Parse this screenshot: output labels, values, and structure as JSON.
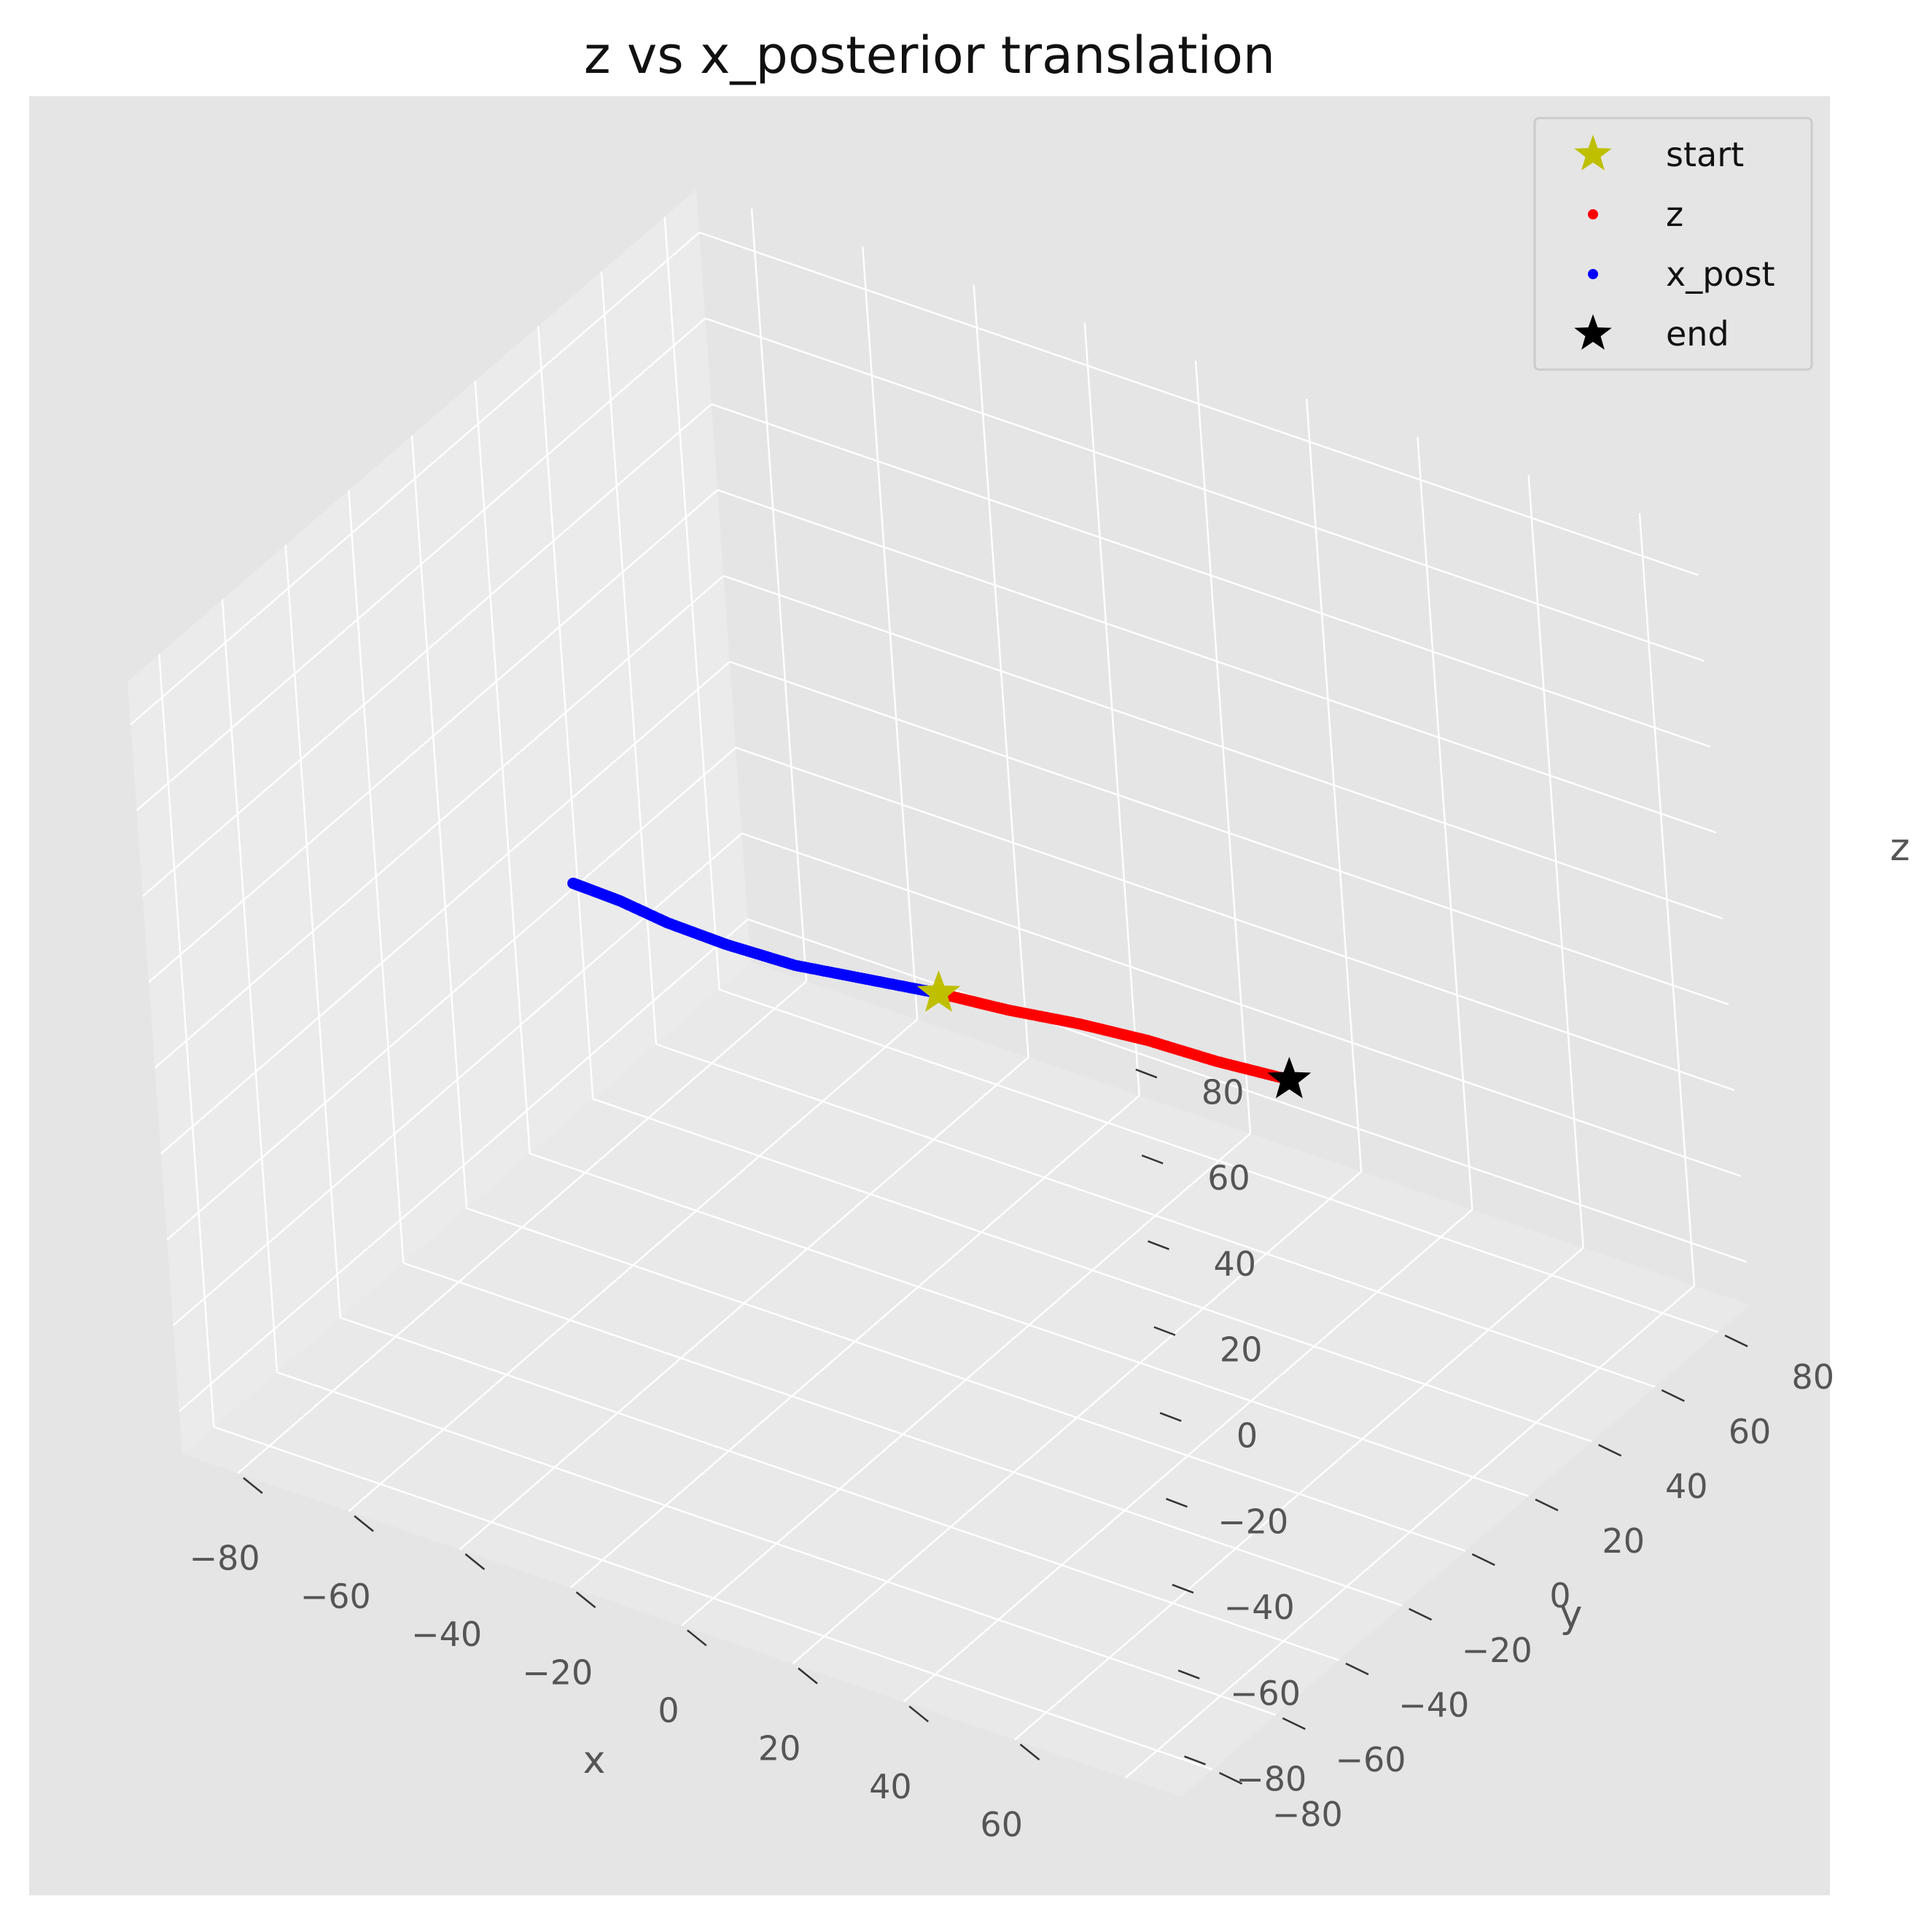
{
  "chart_data": {
    "type": "scatter",
    "projection": "3d",
    "title": "z vs x_posterior translation",
    "xlabel": "x",
    "ylabel": "y",
    "zlabel": "z",
    "xlim": [
      -90,
      90
    ],
    "ylim": [
      -90,
      90
    ],
    "zlim": [
      -90,
      90
    ],
    "x_ticks": [
      "−80",
      "−60",
      "−40",
      "−20",
      "0",
      "20",
      "40",
      "60"
    ],
    "y_ticks": [
      "−80",
      "−60",
      "−40",
      "−20",
      "0",
      "20",
      "40",
      "60",
      "80"
    ],
    "z_ticks": [
      "−80",
      "−60",
      "−40",
      "−20",
      "0",
      "20",
      "40",
      "60",
      "80"
    ],
    "grid": true,
    "legend_position": "upper right",
    "colors": {
      "figure_bg": "#e5e5e5",
      "pane_left": "#ebebeb",
      "pane_floor": "#e9e9e9",
      "pane_back": "#e5e5e5",
      "grid": "#ffffff",
      "start": "#bfbf00",
      "z": "#ff0000",
      "x_post": "#0000ff",
      "end": "#000000"
    },
    "series": [
      {
        "name": "start",
        "marker": "star",
        "points": [
          [
            0,
            0,
            0
          ]
        ]
      },
      {
        "name": "z",
        "marker": "dot",
        "points": [
          [
            0,
            0,
            0
          ],
          [
            10,
            4,
            -2
          ],
          [
            20,
            9,
            -4
          ],
          [
            30,
            13,
            -6
          ],
          [
            40,
            17,
            -9
          ],
          [
            50,
            22,
            -12
          ]
        ]
      },
      {
        "name": "x_post",
        "marker": "dot",
        "points": [
          [
            0,
            0,
            0
          ],
          [
            -10,
            -5,
            2
          ],
          [
            -20,
            -10,
            4
          ],
          [
            -30,
            -14,
            7
          ],
          [
            -38,
            -18,
            11
          ],
          [
            -44,
            -22,
            16
          ],
          [
            -48,
            -25,
            19
          ],
          [
            -50,
            -26,
            20
          ]
        ]
      },
      {
        "name": "end",
        "marker": "star",
        "points": [
          [
            50,
            22,
            -12
          ]
        ]
      }
    ],
    "legend": [
      "start",
      "z",
      "x_post",
      "end"
    ]
  }
}
